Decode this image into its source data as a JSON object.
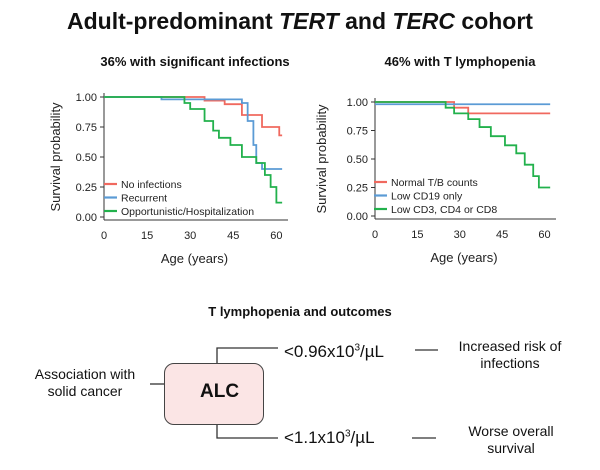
{
  "title_prefix": "Adult-predominant ",
  "title_italic_1": "TERT",
  "title_mid": " and ",
  "title_italic_2": "TERC",
  "title_suffix": " cohort",
  "chart_data": [
    {
      "type": "line",
      "step": true,
      "title": "36% with significant infections",
      "xlabel": "Age (years)",
      "ylabel": "Survival probability",
      "xlim": [
        0,
        63
      ],
      "ylim": [
        0,
        1
      ],
      "x_ticks": [
        0,
        15,
        30,
        45,
        60
      ],
      "y_ticks": [
        "0.00",
        "0.25",
        "0.50",
        "0.75",
        "1.00"
      ],
      "legend_position": "bottom-left",
      "series": [
        {
          "name": "No infections",
          "color": "#f0695f",
          "x": [
            0,
            35,
            42,
            48,
            55,
            61,
            62
          ],
          "y": [
            1.0,
            0.97,
            0.94,
            0.85,
            0.75,
            0.68,
            0.68
          ]
        },
        {
          "name": "Recurrent",
          "color": "#5b9bd5",
          "x": [
            0,
            20,
            48,
            50,
            52,
            53,
            55,
            62
          ],
          "y": [
            1.0,
            0.98,
            0.95,
            0.8,
            0.6,
            0.45,
            0.4,
            0.4
          ]
        },
        {
          "name": "Opportunistic/Hospitalization",
          "color": "#22b14c",
          "x": [
            0,
            28,
            30,
            35,
            38,
            40,
            44,
            48,
            53,
            56,
            58,
            60,
            62
          ],
          "y": [
            1.0,
            0.95,
            0.9,
            0.8,
            0.72,
            0.66,
            0.6,
            0.5,
            0.45,
            0.35,
            0.25,
            0.12,
            0.12
          ]
        }
      ]
    },
    {
      "type": "line",
      "step": true,
      "title": "46% with T lymphopenia",
      "xlabel": "Age (years)",
      "ylabel": "Survival probability",
      "xlim": [
        0,
        63
      ],
      "ylim": [
        0,
        1
      ],
      "x_ticks": [
        0,
        15,
        30,
        45,
        60
      ],
      "y_ticks": [
        "0.00",
        "0.25",
        "0.50",
        "0.75",
        "1.00"
      ],
      "legend_position": "bottom-left",
      "series": [
        {
          "name": "Normal T/B counts",
          "color": "#f0695f",
          "x": [
            0,
            28,
            33,
            62
          ],
          "y": [
            1.0,
            0.95,
            0.9,
            0.9
          ]
        },
        {
          "name": "Low CD19 only",
          "color": "#5b9bd5",
          "x": [
            0,
            62
          ],
          "y": [
            0.98,
            0.98
          ]
        },
        {
          "name": "Low CD3, CD4 or CD8",
          "color": "#22b14c",
          "x": [
            0,
            25,
            28,
            33,
            37,
            41,
            46,
            50,
            53,
            56,
            58,
            62
          ],
          "y": [
            1.0,
            0.95,
            0.9,
            0.85,
            0.78,
            0.7,
            0.62,
            0.55,
            0.45,
            0.35,
            0.25,
            0.25
          ]
        }
      ]
    }
  ],
  "outcomes": {
    "section_title": "T lymphopenia and outcomes",
    "alc_label": "ALC",
    "threshold_top_base": "<0.96x10",
    "threshold_top_exp": "3",
    "threshold_top_unit": "/µL",
    "threshold_bottom_base": "<1.1x10",
    "threshold_bottom_exp": "3",
    "threshold_bottom_unit": "/µL",
    "association_text": "Association with solid cancer",
    "top_outcome": "Increased risk of infections",
    "bottom_outcome": "Worse overall survival"
  }
}
